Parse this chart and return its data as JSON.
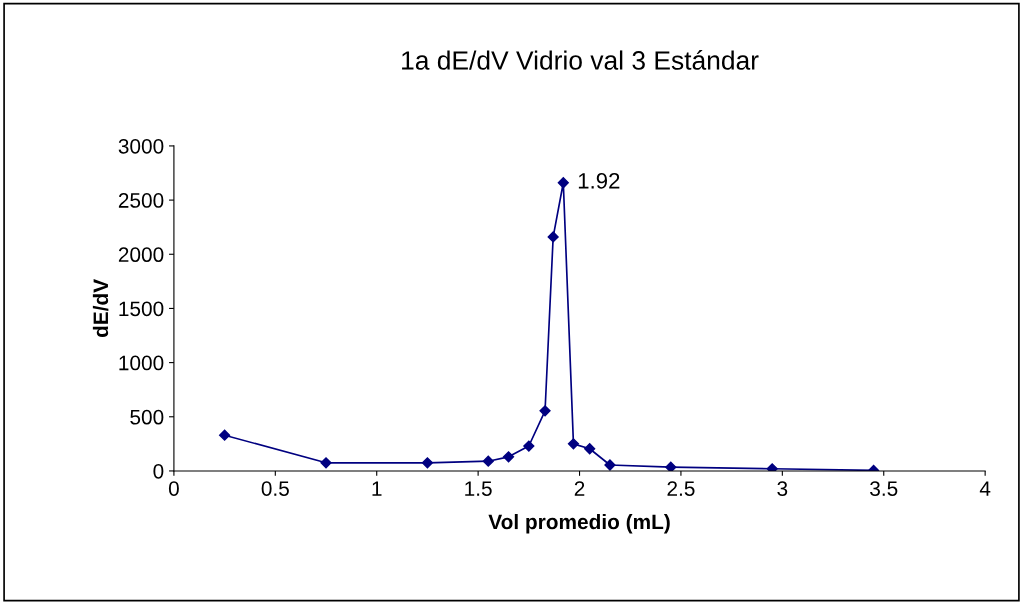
{
  "chart_data": {
    "type": "line",
    "title": "1a dE/dV Vidrio val 3 Estándar",
    "xlabel": "Vol promedio (mL)",
    "ylabel": "dE/dV",
    "x": [
      0.25,
      0.75,
      1.25,
      1.55,
      1.65,
      1.75,
      1.83,
      1.87,
      1.92,
      1.97,
      2.05,
      2.15,
      2.45,
      2.95,
      3.45
    ],
    "series": [
      {
        "color": "#000080",
        "values": [
          330,
          75,
          75,
          90,
          130,
          230,
          555,
          2160,
          2660,
          250,
          205,
          55,
          35,
          20,
          5
        ]
      }
    ],
    "xlim": [
      0,
      4
    ],
    "xticks": [
      0,
      0.5,
      1,
      1.5,
      2,
      2.5,
      3,
      3.5,
      4
    ],
    "ylim": [
      0,
      3000
    ],
    "yticks": [
      0,
      500,
      1000,
      1500,
      2000,
      2500,
      3000
    ],
    "grid": false,
    "legend": false,
    "marker": "diamond",
    "line_style": "solid",
    "annotations": [
      {
        "text": "1.92",
        "x": 1.92,
        "y": 2660
      }
    ]
  }
}
